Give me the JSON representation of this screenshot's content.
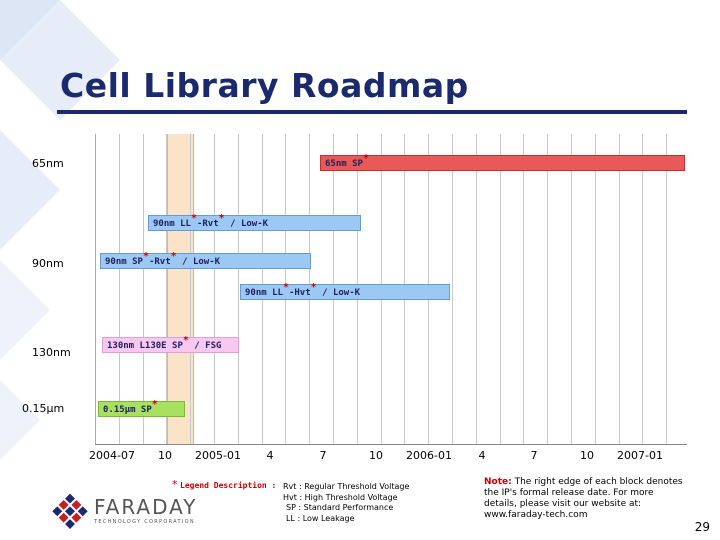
{
  "slide": {
    "title": "Cell Library Roadmap",
    "page_number": "29"
  },
  "rows": [
    {
      "label": "65nm"
    },
    {
      "label": "90nm"
    },
    {
      "label": "130nm"
    },
    {
      "label": "0.15µm"
    }
  ],
  "bars": [
    {
      "label": "65nm SP",
      "star": "*",
      "color": "#e85a5a"
    },
    {
      "label_a": "90nm LL",
      "star_a": "*",
      "label_b": "-Rvt",
      "star_b": "*",
      "label_c": " / Low-K",
      "color": "#9cc8f4"
    },
    {
      "label_a": "90nm SP",
      "star_a": "*",
      "label_b": "-Rvt",
      "star_b": "*",
      "label_c": " / Low-K",
      "color": "#9cc8f4"
    },
    {
      "label_a": "90nm LL",
      "star_a": "*",
      "label_b": "-Hvt",
      "star_b": "*",
      "label_c": " / Low-K",
      "color": "#9cc8f4"
    },
    {
      "label_a": "130nm L130E SP",
      "star_a": "*",
      "label_c": " / FSG",
      "color": "#f7c8f0"
    },
    {
      "label": "0.15µm SP",
      "star": "*",
      "color": "#a8e060"
    }
  ],
  "axis": {
    "ticks": [
      "2004-07",
      "10",
      "2005-01",
      "4",
      "7",
      "10",
      "2006-01",
      "4",
      "7",
      "10",
      "2007-01"
    ]
  },
  "legend": {
    "star": "*",
    "heading": "Legend Description :",
    "items": [
      "Rvt :   Regular Threshold Voltage",
      "Hvt :  High Threshold Voltage",
      "SP :  Standard Performance",
      "LL :  Low Leakage"
    ]
  },
  "note": {
    "label": "Note:",
    "text": " The right edge of each block denotes the IP's formal release date.  For more details, please visit our website at:",
    "url": "www.faraday-tech.com"
  },
  "logo": {
    "name": "FARADAY",
    "tagline": "TECHNOLOGY CORPORATION"
  },
  "colors": {
    "title": "#1a2a6c",
    "highlight_column": "#fbe3c8",
    "grid": "#c8c8c8"
  }
}
